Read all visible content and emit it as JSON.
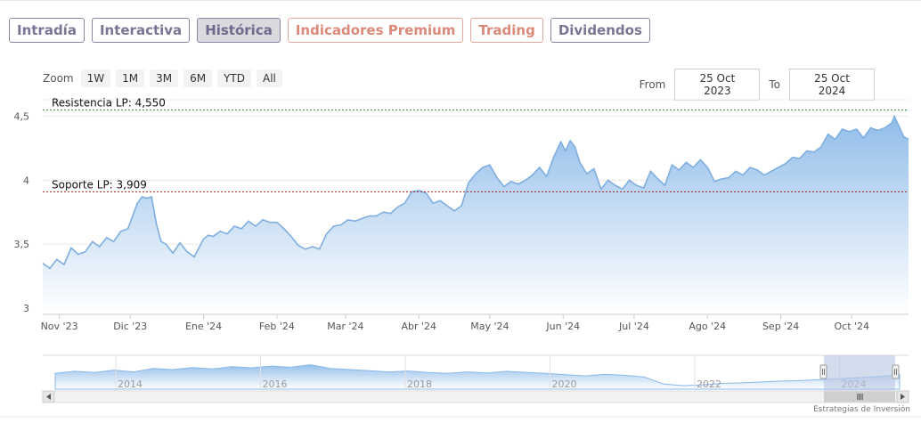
{
  "tabs": [
    {
      "label": "Intradía",
      "style": "normal"
    },
    {
      "label": "Interactiva",
      "style": "normal"
    },
    {
      "label": "Histórica",
      "style": "active"
    },
    {
      "label": "Indicadores Premium",
      "style": "orange"
    },
    {
      "label": "Trading",
      "style": "orange"
    },
    {
      "label": "Dividendos",
      "style": "normal"
    }
  ],
  "zoom": {
    "label": "Zoom",
    "buttons": [
      "1W",
      "1M",
      "3M",
      "6M",
      "YTD",
      "All"
    ]
  },
  "range": {
    "from_label": "From",
    "from_value": "25 Oct 2023",
    "to_label": "To",
    "to_value": "25 Oct 2024"
  },
  "credit": "Estrategias de Inversión",
  "colors": {
    "line": "#7eaee0",
    "area_top": "#8ab9e8",
    "area_bottom": "#ffffff",
    "resistance": "#2e8b2e",
    "support": "#a02020",
    "navigator_mask": "#c9d5ea"
  },
  "chart_data": {
    "type": "area",
    "ylim": [
      2.95,
      4.63
    ],
    "y_ticks": [
      {
        "v": 3,
        "label": "3"
      },
      {
        "v": 3.5,
        "label": "3,5"
      },
      {
        "v": 4,
        "label": "4"
      },
      {
        "v": 4.5,
        "label": "4,5"
      }
    ],
    "x_ticks": [
      {
        "d": 7,
        "label": "Nov '23"
      },
      {
        "d": 37,
        "label": "Dic '23"
      },
      {
        "d": 68,
        "label": "Ene '24"
      },
      {
        "d": 99,
        "label": "Feb '24"
      },
      {
        "d": 128,
        "label": "Mar '24"
      },
      {
        "d": 159,
        "label": "Abr '24"
      },
      {
        "d": 189,
        "label": "May '24"
      },
      {
        "d": 220,
        "label": "Jun '24"
      },
      {
        "d": 250,
        "label": "Jul '24"
      },
      {
        "d": 281,
        "label": "Ago '24"
      },
      {
        "d": 312,
        "label": "Sep '24"
      },
      {
        "d": 342,
        "label": "Oct '24"
      }
    ],
    "xlim": [
      0,
      366
    ],
    "lines": [
      {
        "label": "Resistencia LP: 4,550",
        "value": 4.55,
        "kind": "resistance"
      },
      {
        "label": "Soporte LP: 3,909",
        "value": 3.909,
        "kind": "support"
      }
    ],
    "series": {
      "x": [
        0,
        3,
        6,
        9,
        12,
        15,
        18,
        21,
        24,
        27,
        30,
        33,
        36,
        38,
        40,
        42,
        44,
        46,
        48,
        50,
        52,
        55,
        58,
        61,
        64,
        66,
        68,
        70,
        72,
        75,
        78,
        81,
        84,
        87,
        90,
        93,
        96,
        99,
        102,
        105,
        108,
        111,
        114,
        117,
        120,
        123,
        126,
        129,
        132,
        135,
        138,
        141,
        144,
        147,
        150,
        153,
        156,
        159,
        162,
        165,
        168,
        171,
        174,
        177,
        180,
        183,
        186,
        189,
        192,
        195,
        198,
        201,
        204,
        207,
        210,
        213,
        216,
        219,
        221,
        223,
        225,
        227,
        230,
        233,
        236,
        239,
        242,
        245,
        248,
        251,
        254,
        257,
        260,
        263,
        266,
        269,
        272,
        275,
        278,
        281,
        284,
        287,
        290,
        293,
        296,
        299,
        302,
        305,
        308,
        311,
        314,
        317,
        320,
        323,
        326,
        329,
        332,
        335,
        338,
        341,
        344,
        347,
        350,
        353,
        356,
        359,
        360,
        362,
        364,
        366
      ],
      "y": [
        3.35,
        3.31,
        3.38,
        3.34,
        3.47,
        3.42,
        3.44,
        3.52,
        3.48,
        3.55,
        3.52,
        3.6,
        3.62,
        3.72,
        3.82,
        3.87,
        3.86,
        3.87,
        3.66,
        3.52,
        3.5,
        3.43,
        3.51,
        3.44,
        3.4,
        3.47,
        3.54,
        3.57,
        3.56,
        3.6,
        3.58,
        3.64,
        3.62,
        3.68,
        3.64,
        3.69,
        3.67,
        3.67,
        3.62,
        3.56,
        3.49,
        3.46,
        3.48,
        3.46,
        3.58,
        3.64,
        3.65,
        3.69,
        3.68,
        3.7,
        3.72,
        3.72,
        3.75,
        3.74,
        3.79,
        3.82,
        3.91,
        3.92,
        3.9,
        3.82,
        3.84,
        3.8,
        3.76,
        3.8,
        3.98,
        4.05,
        4.1,
        4.12,
        4.02,
        3.95,
        3.99,
        3.97,
        4.0,
        4.04,
        4.1,
        4.03,
        4.18,
        4.3,
        4.23,
        4.31,
        4.26,
        4.14,
        4.05,
        4.09,
        3.93,
        4.0,
        3.96,
        3.93,
        4.0,
        3.96,
        3.94,
        4.07,
        4.01,
        3.96,
        4.12,
        4.08,
        4.14,
        4.1,
        4.16,
        4.1,
        3.99,
        4.01,
        4.02,
        4.07,
        4.04,
        4.1,
        4.08,
        4.04,
        4.07,
        4.1,
        4.13,
        4.18,
        4.17,
        4.23,
        4.22,
        4.26,
        4.36,
        4.32,
        4.4,
        4.38,
        4.4,
        4.33,
        4.41,
        4.39,
        4.41,
        4.45,
        4.5,
        4.42,
        4.34,
        4.32
      ]
    },
    "navigator": {
      "x_ticks": [
        "2014",
        "2016",
        "2018",
        "2020",
        "2022",
        "2024"
      ]
    }
  }
}
